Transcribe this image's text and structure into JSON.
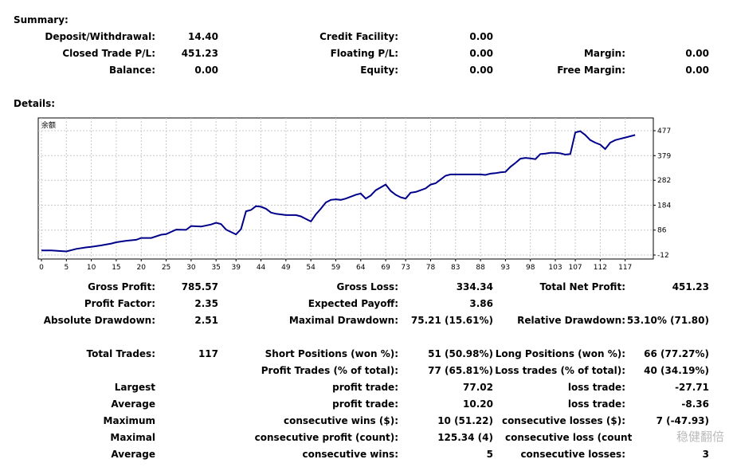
{
  "summary": {
    "title": "Summary:",
    "deposit_label": "Deposit/Withdrawal:",
    "deposit_value": "14.40",
    "credit_label": "Credit Facility:",
    "credit_value": "0.00",
    "closed_label": "Closed Trade P/L:",
    "closed_value": "451.23",
    "floating_label": "Floating P/L:",
    "floating_value": "0.00",
    "margin_label": "Margin:",
    "margin_value": "0.00",
    "balance_label": "Balance:",
    "balance_value": "0.00",
    "equity_label": "Equity:",
    "equity_value": "0.00",
    "free_margin_label": "Free Margin:",
    "free_margin_value": "0.00"
  },
  "details": {
    "title": "Details:"
  },
  "chart_data": {
    "type": "line",
    "title": "余额",
    "color": "#00008b",
    "x_ticks": [
      0,
      5,
      10,
      15,
      20,
      25,
      30,
      35,
      39,
      44,
      49,
      54,
      59,
      64,
      69,
      73,
      78,
      83,
      88,
      93,
      98,
      103,
      107,
      112,
      117
    ],
    "y_ticks": [
      -12,
      86,
      184,
      282,
      379,
      477
    ],
    "x_range": [
      0,
      122
    ],
    "y_range": [
      -12,
      477
    ],
    "x": [
      0,
      2,
      5,
      7,
      9,
      10,
      12,
      14,
      15,
      17,
      19,
      20,
      22,
      24,
      25,
      27,
      29,
      30,
      32,
      34,
      35,
      36,
      37,
      39,
      40,
      41,
      42,
      43,
      44,
      45,
      46,
      47,
      49,
      51,
      52,
      54,
      55,
      56,
      57,
      58,
      59,
      60,
      61,
      63,
      64,
      65,
      66,
      67,
      69,
      70,
      71,
      72,
      73,
      74,
      75,
      76,
      77,
      78,
      79,
      80,
      81,
      82,
      84,
      86,
      88,
      89,
      90,
      91,
      92,
      93,
      94,
      95,
      96,
      97,
      98,
      99,
      100,
      101,
      102,
      103,
      104,
      105,
      106,
      107,
      108,
      109,
      110,
      111,
      112,
      113,
      114,
      115,
      116,
      117,
      118,
      119
    ],
    "values": [
      6,
      6,
      2,
      12,
      18,
      20,
      26,
      33,
      38,
      44,
      48,
      55,
      55,
      68,
      70,
      88,
      87,
      102,
      100,
      108,
      115,
      110,
      88,
      69,
      90,
      160,
      165,
      180,
      178,
      170,
      155,
      150,
      145,
      145,
      140,
      120,
      148,
      170,
      195,
      205,
      207,
      205,
      210,
      225,
      230,
      210,
      222,
      243,
      265,
      240,
      225,
      215,
      210,
      233,
      236,
      243,
      250,
      265,
      270,
      285,
      300,
      305,
      305,
      305,
      305,
      303,
      308,
      310,
      313,
      315,
      335,
      350,
      367,
      370,
      368,
      365,
      385,
      387,
      390,
      390,
      388,
      383,
      385,
      470,
      475,
      460,
      440,
      430,
      422,
      405,
      430,
      440,
      445,
      450,
      455,
      460
    ]
  },
  "stats": {
    "gross_profit_label": "Gross Profit:",
    "gross_profit": "785.57",
    "gross_loss_label": "Gross Loss:",
    "gross_loss": "334.34",
    "total_net_label": "Total Net Profit:",
    "total_net": "451.23",
    "profit_factor_label": "Profit Factor:",
    "profit_factor": "2.35",
    "expected_payoff_label": "Expected Payoff:",
    "expected_payoff": "3.86",
    "abs_dd_label": "Absolute Drawdown:",
    "abs_dd": "2.51",
    "max_dd_label": "Maximal Drawdown:",
    "max_dd": "75.21 (15.61%)",
    "rel_dd_label": "Relative Drawdown:",
    "rel_dd": "53.10% (71.80)",
    "total_trades_label": "Total Trades:",
    "total_trades": "117",
    "short_label": "Short Positions (won %):",
    "short": "51 (50.98%)",
    "long_label": "Long Positions (won %):",
    "long": "66 (77.27%)",
    "profit_trades_label": "Profit Trades (% of total):",
    "profit_trades": "77 (65.81%)",
    "loss_trades_label": "Loss trades (% of total):",
    "loss_trades": "40 (34.19%)",
    "largest_label": "Largest",
    "largest_profit_label": "profit trade:",
    "largest_profit": "77.02",
    "largest_loss_label": "loss trade:",
    "largest_loss": "-27.71",
    "average_label": "Average",
    "avg_profit_label": "profit trade:",
    "avg_profit": "10.20",
    "avg_loss_label": "loss trade:",
    "avg_loss": "-8.36",
    "maximum_label": "Maximum",
    "max_cons_wins_label": "consecutive wins ($):",
    "max_cons_wins": "10 (51.22)",
    "max_cons_losses_label": "consecutive losses ($):",
    "max_cons_losses": "7 (-47.93)",
    "maximal_label": "Maximal",
    "max_cons_profit_label": "consecutive profit (count):",
    "max_cons_profit": "125.34 (4)",
    "max_cons_loss_label": "consecutive loss (count",
    "max_cons_loss": "",
    "average2_label": "Average",
    "avg_cons_wins_label": "consecutive wins:",
    "avg_cons_wins": "5",
    "avg_cons_losses_label": "consecutive losses:",
    "avg_cons_losses": "3"
  },
  "watermark": "稳健翻倍"
}
